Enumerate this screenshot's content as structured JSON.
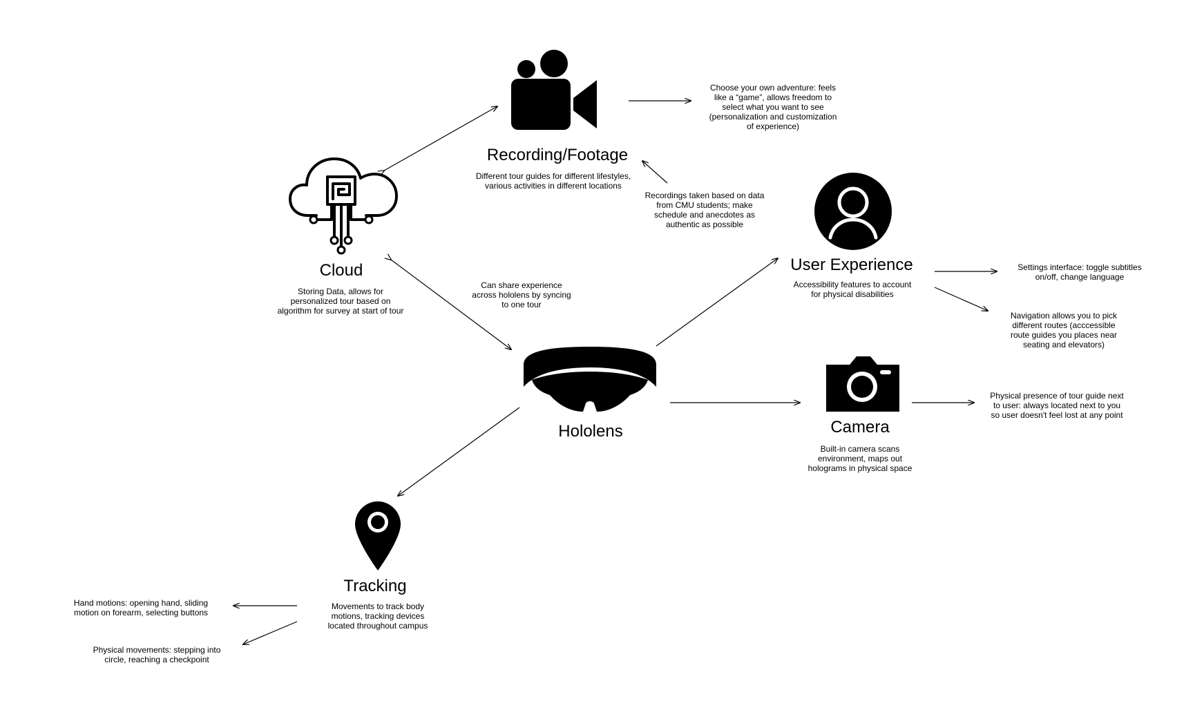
{
  "nodes": {
    "recording": {
      "title": "Recording/Footage",
      "description": "Different tour guides for different lifestyles,\nvarious activities in different locations",
      "icon": "video-camera-icon"
    },
    "cloud": {
      "title": "Cloud",
      "description": "Storing Data, allows for\npersonalized tour based on\nalgorithm for survey at start of tour",
      "icon": "cloud-chip-icon"
    },
    "hololens": {
      "title": "Hololens",
      "icon": "mixed-reality-headset-icon"
    },
    "user_experience": {
      "title": "User Experience",
      "description": "Accessibility features to account\nfor physical disabilities",
      "icon": "user-avatar-icon"
    },
    "camera": {
      "title": "Camera",
      "description": "Built-in camera scans\nenvironment, maps out\nholograms in physical space",
      "icon": "photo-camera-icon"
    },
    "tracking": {
      "title": "Tracking",
      "description": "Movements to track body\nmotions, tracking devices\nlocated throughout campus",
      "icon": "location-pin-icon"
    }
  },
  "notes": {
    "adventure": "Choose your own adventure: feels\nlike a “game”, allows freedom to\nselect what you want to see\n(personalization and customization\nof experience)",
    "recordings_data": "Recordings taken based on data\nfrom CMU students; make\nschedule and anecdotes as\nauthentic as possible",
    "share": "Can share experience\nacross hololens by syncing\nto one tour",
    "settings": "Settings interface: toggle subtitles\non/off, change language",
    "navigation": "Navigation allows you to pick\ndifferent routes (acccessible\nroute guides you places near\nseating and elevators)",
    "presence": "Physical presence of tour guide next\nto user: always located next to you\nso user doesn't feel lost at any point",
    "hand_motions": "Hand motions: opening hand, sliding\nmotion on forearm, selecting buttons",
    "physical_movements": "Physical movements: stepping into\ncircle, reaching a checkpoint"
  }
}
